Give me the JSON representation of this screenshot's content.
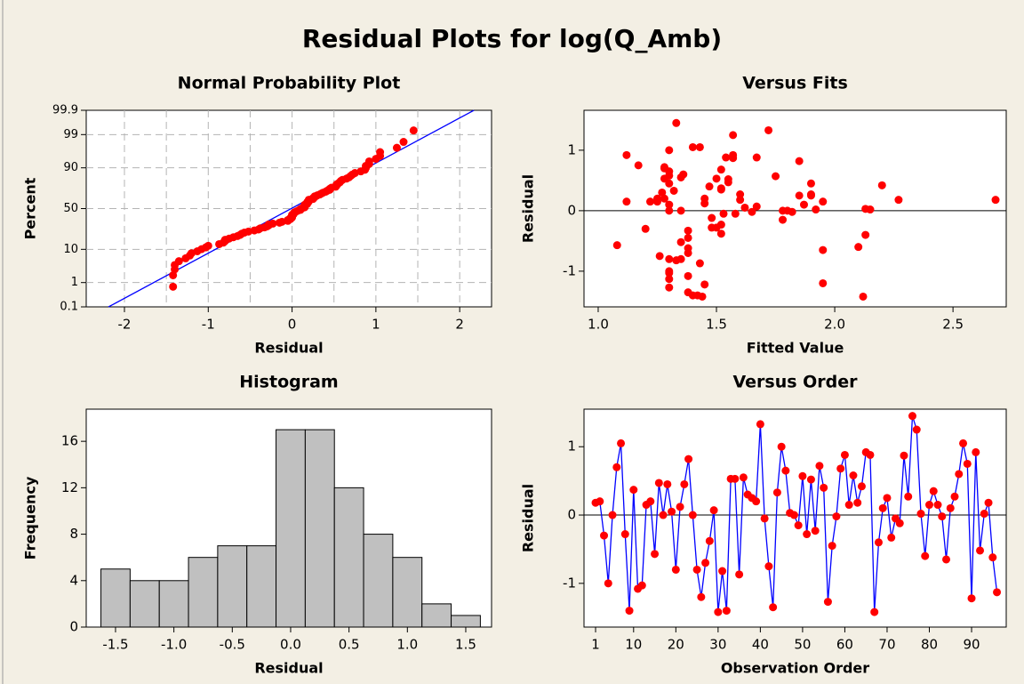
{
  "title": "Residual Plots for log(Q_Amb)",
  "chart_data": [
    {
      "type": "probability",
      "title": "Normal Probability Plot",
      "xlabel": "Residual",
      "ylabel": "Percent",
      "yscale": "probability",
      "grid": true,
      "xlim": [
        -2.456,
        2.38
      ],
      "ylim": [
        0.1,
        99.9
      ],
      "xticks": [
        -2,
        -1,
        0,
        1,
        2
      ],
      "yticks": [
        0.1,
        1,
        10,
        50,
        90,
        99,
        99.9
      ],
      "xgrid": [
        -2,
        -1.5,
        -1,
        -0.5,
        0,
        0.5,
        1,
        1.5,
        2
      ],
      "ygrid": [
        1,
        10,
        50,
        90,
        99
      ],
      "color": "#ff0000",
      "x": [
        -1.42,
        -1.42,
        -1.4,
        -1.4,
        -1.35,
        -1.27,
        -1.22,
        -1.2,
        -1.13,
        -1.08,
        -1.03,
        -1.0,
        -0.87,
        -0.82,
        -0.8,
        -0.8,
        -0.75,
        -0.7,
        -0.65,
        -0.62,
        -0.6,
        -0.57,
        -0.52,
        -0.45,
        -0.4,
        -0.38,
        -0.33,
        -0.3,
        -0.28,
        -0.28,
        -0.23,
        -0.15,
        -0.12,
        -0.05,
        -0.05,
        -0.02,
        -0.02,
        0.0,
        0.0,
        0.0,
        0.0,
        0.02,
        0.02,
        0.03,
        0.05,
        0.07,
        0.1,
        0.1,
        0.12,
        0.15,
        0.15,
        0.15,
        0.15,
        0.18,
        0.18,
        0.18,
        0.2,
        0.2,
        0.2,
        0.25,
        0.25,
        0.27,
        0.27,
        0.3,
        0.33,
        0.35,
        0.37,
        0.4,
        0.42,
        0.45,
        0.45,
        0.47,
        0.52,
        0.53,
        0.53,
        0.55,
        0.57,
        0.58,
        0.6,
        0.65,
        0.68,
        0.7,
        0.72,
        0.75,
        0.82,
        0.87,
        0.88,
        0.88,
        0.92,
        0.92,
        1.0,
        1.05,
        1.05,
        1.25,
        1.33,
        1.45
      ],
      "y": [
        0.7,
        1.8,
        2.8,
        3.8,
        4.9,
        5.9,
        7.0,
        8.0,
        9.0,
        10.1,
        11.1,
        12.1,
        13.2,
        14.2,
        15.3,
        16.3,
        17.3,
        18.4,
        19.4,
        20.4,
        21.5,
        22.5,
        23.5,
        24.6,
        25.6,
        26.7,
        27.7,
        28.7,
        29.8,
        30.8,
        31.8,
        32.9,
        33.9,
        35.0,
        36.0,
        37.0,
        38.1,
        39.1,
        40.1,
        41.2,
        42.2,
        43.3,
        44.3,
        45.3,
        46.4,
        47.4,
        48.4,
        49.5,
        50.5,
        51.6,
        52.6,
        53.6,
        54.7,
        55.7,
        56.7,
        57.8,
        58.8,
        59.9,
        60.9,
        61.9,
        63.0,
        64.0,
        65.0,
        66.1,
        67.1,
        68.2,
        69.2,
        70.2,
        71.3,
        72.3,
        73.3,
        74.4,
        75.4,
        76.5,
        77.5,
        78.5,
        79.6,
        80.6,
        81.6,
        82.7,
        83.7,
        84.8,
        85.8,
        86.8,
        87.9,
        88.9,
        89.9,
        91.0,
        92.0,
        93.1,
        94.1,
        95.1,
        96.2,
        97.2,
        98.2,
        99.3
      ],
      "fit_line": {
        "x": [
          -2.19,
          2.17
        ],
        "y": [
          0.1,
          99.9
        ],
        "color": "#0000ff"
      }
    },
    {
      "type": "scatter",
      "title": "Versus Fits",
      "xlabel": "Fitted Value",
      "ylabel": "Residual",
      "xlim": [
        0.94,
        2.725
      ],
      "ylim": [
        -1.59,
        1.66
      ],
      "xticks": [
        {
          "value": 1,
          "label": "1.0"
        },
        1.5,
        {
          "value": 2,
          "label": "2.0"
        },
        2.5
      ],
      "yticks": [
        -1,
        0,
        1
      ],
      "ref_line": 0,
      "color": "#ff0000",
      "x": [
        2.68,
        1.28,
        1.2,
        1.3,
        1.35,
        1.28,
        1.4,
        1.5,
        1.42,
        1.52,
        1.38,
        1.3,
        1.22,
        1.25,
        1.08,
        1.55,
        1.3,
        1.9,
        1.62,
        1.3,
        1.45,
        1.3,
        1.85,
        1.8,
        1.35,
        1.95,
        1.38,
        1.52,
        1.67,
        2.12,
        1.33,
        1.4,
        1.5,
        1.28,
        1.43,
        1.35,
        1.27,
        1.85,
        1.45,
        1.72,
        1.53,
        1.26,
        1.38,
        1.32,
        1.3,
        1.3,
        2.13,
        1.78,
        1.78,
        1.75,
        1.48,
        1.55,
        1.52,
        1.28,
        1.47,
        1.3,
        1.38,
        1.82,
        1.52,
        1.54,
        1.12,
        1.3,
        1.6,
        2.2,
        1.57,
        1.67,
        1.44,
        2.13,
        1.87,
        1.9,
        1.38,
        1.58,
        1.48,
        1.57,
        1.6,
        1.33,
        1.57,
        1.92,
        2.1,
        1.95,
        1.52,
        1.25,
        1.65,
        1.95,
        1.3,
        1.9,
        1.36,
        1.43,
        1.17,
        1.45,
        1.12,
        1.35,
        2.15,
        2.27,
        1.38,
        1.3
      ],
      "y": [
        0.18,
        0.2,
        -0.3,
        -1.0,
        0.0,
        0.7,
        1.05,
        -0.28,
        -1.4,
        0.37,
        -1.08,
        -1.03,
        0.15,
        0.2,
        -0.57,
        0.47,
        0.0,
        0.45,
        0.05,
        -0.8,
        0.12,
        0.45,
        0.82,
        0.0,
        -0.8,
        -1.2,
        -0.7,
        -0.38,
        0.07,
        -1.42,
        -0.82,
        -1.4,
        0.53,
        0.53,
        -0.87,
        0.55,
        0.3,
        0.25,
        0.2,
        1.33,
        -0.05,
        -0.75,
        -1.35,
        0.33,
        1.0,
        0.65,
        0.03,
        0.0,
        -0.15,
        0.57,
        -0.28,
        0.52,
        -0.23,
        0.72,
        0.4,
        -1.27,
        -0.45,
        -0.02,
        0.68,
        0.88,
        0.15,
        0.58,
        0.18,
        0.42,
        0.92,
        0.88,
        -1.42,
        -0.4,
        0.1,
        0.25,
        -0.33,
        -0.05,
        -0.12,
        0.87,
        0.27,
        1.45,
        1.25,
        0.02,
        -0.6,
        0.15,
        0.35,
        0.15,
        -0.02,
        -0.65,
        0.1,
        0.27,
        0.6,
        1.05,
        0.75,
        -1.22,
        0.92,
        -0.52,
        0.02,
        0.18,
        -0.62,
        -1.13
      ]
    },
    {
      "type": "histogram",
      "title": "Histogram",
      "xlabel": "Residual",
      "ylabel": "Frequency",
      "xlim": [
        -1.751,
        1.721
      ],
      "ylim": [
        0,
        18.77
      ],
      "xticks": [
        -1.5,
        {
          "value": -1,
          "label": "-1.0"
        },
        -0.5,
        {
          "value": 0,
          "label": "0.0"
        },
        0.5,
        {
          "value": 1,
          "label": "1.0"
        },
        1.5
      ],
      "yticks": [
        0,
        4,
        8,
        12,
        16
      ],
      "color": "#c0c0c0",
      "bins": [
        -1.625,
        -1.375,
        -1.125,
        -0.875,
        -0.625,
        -0.375,
        -0.125,
        0.125,
        0.375,
        0.625,
        0.875,
        1.125,
        1.375,
        1.625
      ],
      "counts": [
        5,
        4,
        4,
        6,
        7,
        7,
        17,
        17,
        12,
        8,
        6,
        2,
        1
      ]
    },
    {
      "type": "line",
      "title": "Versus Order",
      "xlabel": "Observation Order",
      "ylabel": "Residual",
      "xlim": [
        -1.74,
        98.2
      ],
      "ylim": [
        -1.64,
        1.55
      ],
      "xticks": [
        1,
        10,
        20,
        30,
        40,
        50,
        60,
        70,
        80,
        90
      ],
      "yticks": [
        -1,
        0,
        1
      ],
      "ref_line": 0,
      "color": "#ff0000",
      "line_color": "#0000ff",
      "x": [
        1,
        2,
        3,
        4,
        5,
        6,
        7,
        8,
        9,
        10,
        11,
        12,
        13,
        14,
        15,
        16,
        17,
        18,
        19,
        20,
        21,
        22,
        23,
        24,
        25,
        26,
        27,
        28,
        29,
        30,
        31,
        32,
        33,
        34,
        35,
        36,
        37,
        38,
        39,
        40,
        41,
        42,
        43,
        44,
        45,
        46,
        47,
        48,
        49,
        50,
        51,
        52,
        53,
        54,
        55,
        56,
        57,
        58,
        59,
        60,
        61,
        62,
        63,
        64,
        65,
        66,
        67,
        68,
        69,
        70,
        71,
        72,
        73,
        74,
        75,
        76,
        77,
        78,
        79,
        80,
        81,
        82,
        83,
        84,
        85,
        86,
        87,
        88,
        89,
        90,
        91,
        92,
        93,
        94,
        95,
        96
      ],
      "y": [
        0.18,
        0.2,
        -0.3,
        -1.0,
        0.0,
        0.7,
        1.05,
        -0.28,
        -1.4,
        0.37,
        -1.08,
        -1.03,
        0.15,
        0.2,
        -0.57,
        0.47,
        0.0,
        0.45,
        0.05,
        -0.8,
        0.12,
        0.45,
        0.82,
        0.0,
        -0.8,
        -1.2,
        -0.7,
        -0.38,
        0.07,
        -1.42,
        -0.82,
        -1.4,
        0.53,
        0.53,
        -0.87,
        0.55,
        0.3,
        0.25,
        0.2,
        1.33,
        -0.05,
        -0.75,
        -1.35,
        0.33,
        1.0,
        0.65,
        0.03,
        0.0,
        -0.15,
        0.57,
        -0.28,
        0.52,
        -0.23,
        0.72,
        0.4,
        -1.27,
        -0.45,
        -0.02,
        0.68,
        0.88,
        0.15,
        0.58,
        0.18,
        0.42,
        0.92,
        0.88,
        -1.42,
        -0.4,
        0.1,
        0.25,
        -0.33,
        -0.05,
        -0.12,
        0.87,
        0.27,
        1.45,
        1.25,
        0.02,
        -0.6,
        0.15,
        0.35,
        0.15,
        -0.02,
        -0.65,
        0.1,
        0.27,
        0.6,
        1.05,
        0.75,
        -1.22,
        0.92,
        -0.52,
        0.02,
        0.18,
        -0.62,
        -1.13
      ]
    }
  ]
}
